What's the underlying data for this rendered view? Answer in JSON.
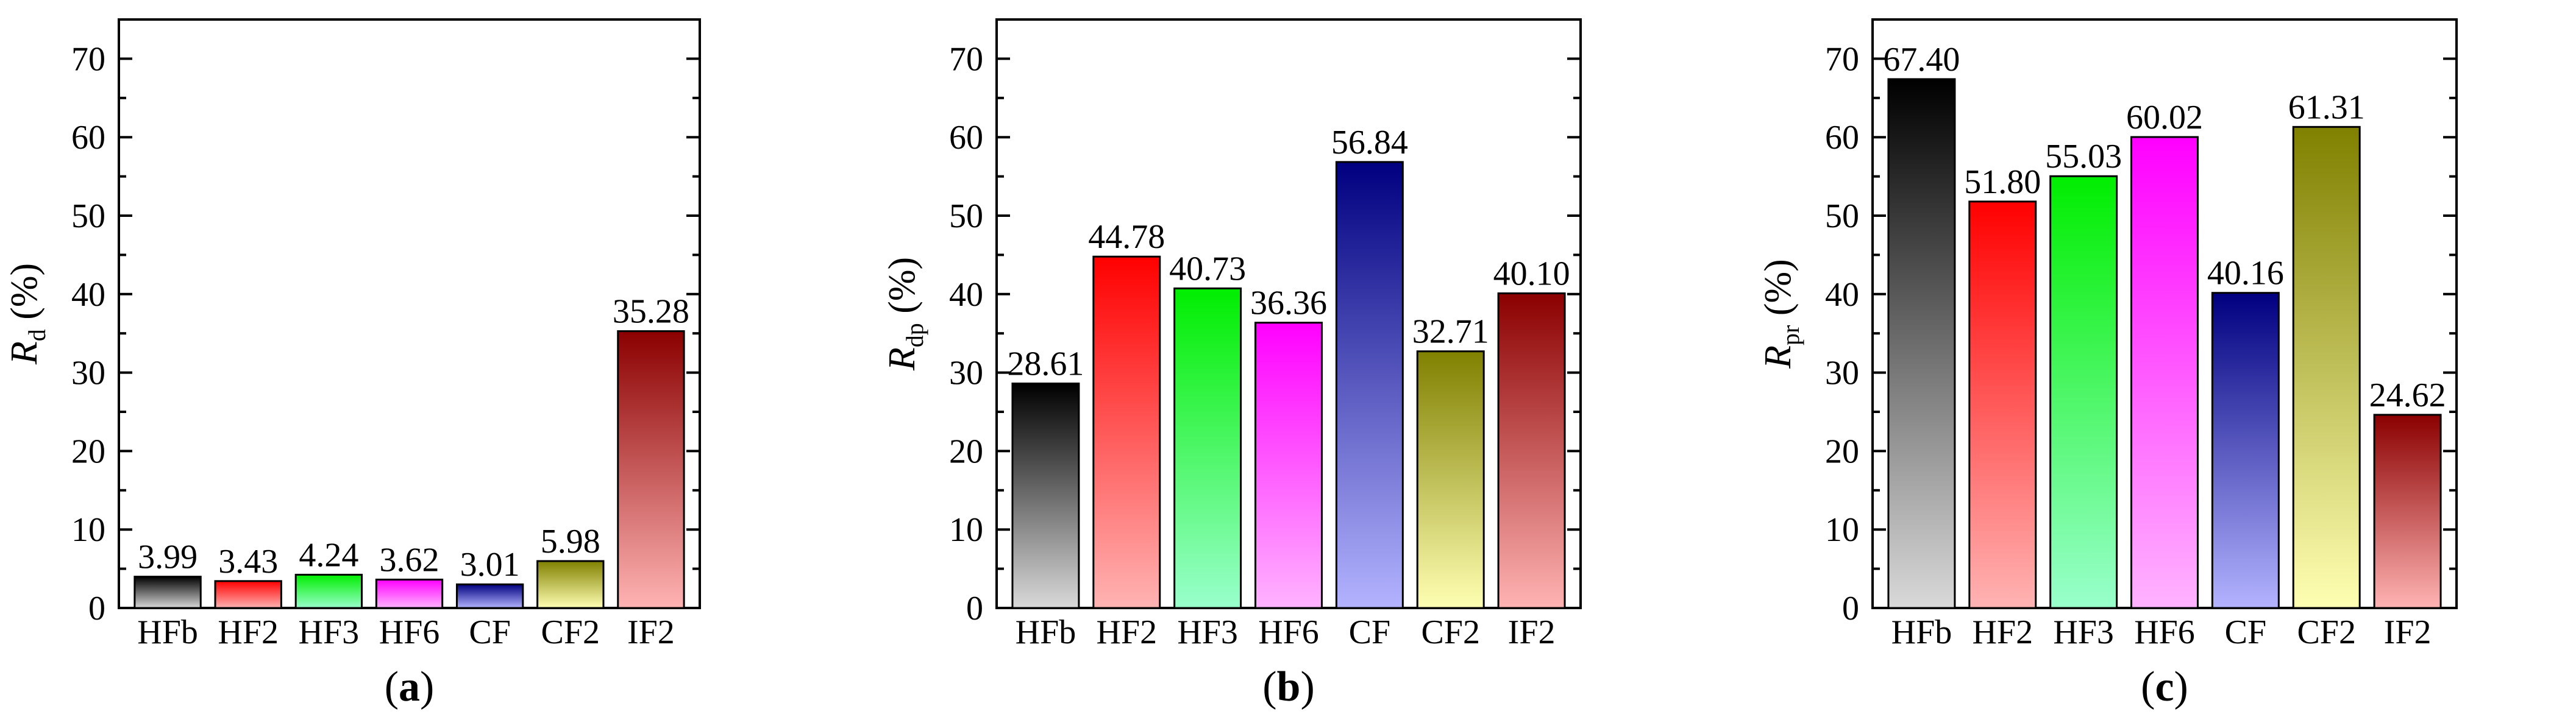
{
  "chart_data": [
    {
      "type": "bar",
      "panel_label": "a",
      "ylabel_symbol": "R",
      "ylabel_subscript": "d",
      "ylabel_unit": " (%)",
      "ylim": [
        0,
        75
      ],
      "yticks": [
        0,
        10,
        20,
        30,
        40,
        50,
        60,
        70
      ],
      "categories": [
        "HFb",
        "HF2",
        "HF3",
        "HF6",
        "CF",
        "CF2",
        "IF2"
      ],
      "values": [
        3.99,
        3.43,
        4.24,
        3.62,
        3.01,
        5.98,
        35.28
      ],
      "value_labels": [
        "3.99",
        "3.43",
        "4.24",
        "3.62",
        "3.01",
        "5.98",
        "35.28"
      ],
      "grid": false
    },
    {
      "type": "bar",
      "panel_label": "b",
      "ylabel_symbol": "R",
      "ylabel_subscript": "dp",
      "ylabel_unit": " (%)",
      "ylim": [
        0,
        75
      ],
      "yticks": [
        0,
        10,
        20,
        30,
        40,
        50,
        60,
        70
      ],
      "categories": [
        "HFb",
        "HF2",
        "HF3",
        "HF6",
        "CF",
        "CF2",
        "IF2"
      ],
      "values": [
        28.61,
        44.78,
        40.73,
        36.36,
        56.84,
        32.71,
        40.1
      ],
      "value_labels": [
        "28.61",
        "44.78",
        "40.73",
        "36.36",
        "56.84",
        "32.71",
        "40.10"
      ],
      "grid": false
    },
    {
      "type": "bar",
      "panel_label": "c",
      "ylabel_symbol": "R",
      "ylabel_subscript": "pr",
      "ylabel_unit": " (%)",
      "ylim": [
        0,
        75
      ],
      "yticks": [
        0,
        10,
        20,
        30,
        40,
        50,
        60,
        70
      ],
      "categories": [
        "HFb",
        "HF2",
        "HF3",
        "HF6",
        "CF",
        "CF2",
        "IF2"
      ],
      "values": [
        67.4,
        51.8,
        55.03,
        60.02,
        40.16,
        61.31,
        24.62
      ],
      "value_labels": [
        "67.40",
        "51.80",
        "55.03",
        "60.02",
        "40.16",
        "61.31",
        "24.62"
      ],
      "grid": false
    }
  ],
  "bar_gradients": [
    {
      "top": "#000000",
      "bottom": "#d9d9d9"
    },
    {
      "top": "#ff0000",
      "bottom": "#ffb3b3"
    },
    {
      "top": "#00ee00",
      "bottom": "#99ffcc"
    },
    {
      "top": "#ff00ff",
      "bottom": "#ffb3ff"
    },
    {
      "top": "#000080",
      "bottom": "#b3b3ff"
    },
    {
      "top": "#808000",
      "bottom": "#ffffb3"
    },
    {
      "top": "#8b0000",
      "bottom": "#ffb3b3"
    }
  ]
}
